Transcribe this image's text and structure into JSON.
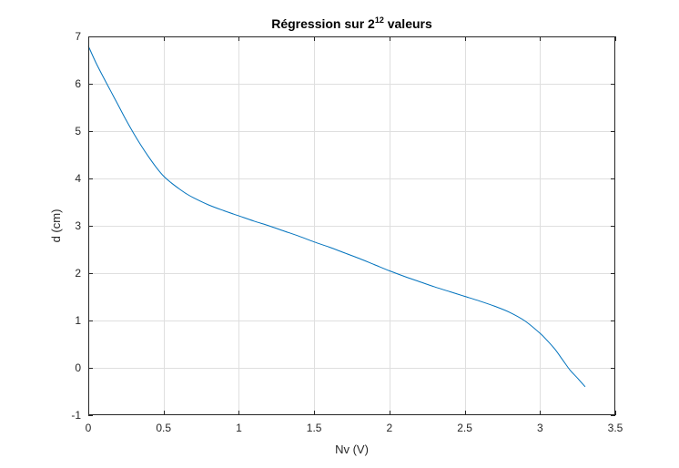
{
  "chart_data": {
    "type": "line",
    "title": {
      "prefix": "Régression sur 2",
      "superscript": "12",
      "suffix": " valeurs"
    },
    "xlabel": "Nv (V)",
    "ylabel": "d (cm)",
    "xlim": [
      0,
      3.5
    ],
    "ylim": [
      -1,
      7
    ],
    "xticks": [
      0,
      0.5,
      1,
      1.5,
      2,
      2.5,
      3,
      3.5
    ],
    "xtick_labels": [
      "0",
      "0.5",
      "1",
      "1.5",
      "2",
      "2.5",
      "3",
      "3.5"
    ],
    "yticks": [
      -1,
      0,
      1,
      2,
      3,
      4,
      5,
      6,
      7
    ],
    "ytick_labels": [
      "-1",
      "0",
      "1",
      "2",
      "3",
      "4",
      "5",
      "6",
      "7"
    ],
    "grid": true,
    "box": true,
    "line_color": "#0072bd",
    "series": [
      {
        "x": [
          0,
          0.05,
          0.1,
          0.15,
          0.2,
          0.25,
          0.3,
          0.35,
          0.4,
          0.45,
          0.5,
          0.55,
          0.6,
          0.65,
          0.7,
          0.8,
          0.9,
          1.0,
          1.1,
          1.2,
          1.3,
          1.4,
          1.5,
          1.6,
          1.7,
          1.8,
          1.9,
          2.0,
          2.1,
          2.2,
          2.3,
          2.4,
          2.5,
          2.6,
          2.7,
          2.8,
          2.9,
          3.0,
          3.05,
          3.1,
          3.15,
          3.2,
          3.25,
          3.3
        ],
        "y": [
          6.8,
          6.45,
          6.14,
          5.84,
          5.54,
          5.24,
          4.96,
          4.7,
          4.46,
          4.24,
          4.05,
          3.91,
          3.79,
          3.68,
          3.59,
          3.44,
          3.32,
          3.21,
          3.1,
          3.0,
          2.89,
          2.78,
          2.66,
          2.55,
          2.43,
          2.31,
          2.18,
          2.05,
          1.93,
          1.82,
          1.71,
          1.61,
          1.51,
          1.41,
          1.3,
          1.17,
          0.99,
          0.73,
          0.57,
          0.39,
          0.17,
          -0.05,
          -0.22,
          -0.4
        ]
      }
    ]
  }
}
